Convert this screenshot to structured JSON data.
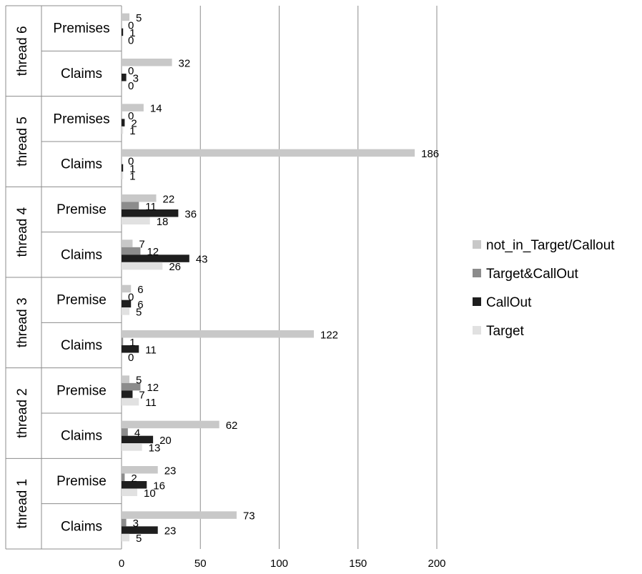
{
  "chart_data": {
    "type": "bar",
    "orientation": "horizontal",
    "grid": true,
    "legend_position": "right",
    "xlim": [
      0,
      200
    ],
    "x_ticks": [
      "0",
      "50",
      "100",
      "150",
      "200"
    ],
    "series": [
      {
        "name": "not_in_Target/Callout",
        "color": "#c8c8c8"
      },
      {
        "name": "Target&CallOut",
        "color": "#8c8c8c"
      },
      {
        "name": "CallOut",
        "color": "#1e1e1e"
      },
      {
        "name": "Target",
        "color": "#e1e1e1"
      }
    ],
    "groups": [
      {
        "name": "thread 6",
        "categories": [
          {
            "label": "Premises",
            "values": [
              5,
              0,
              1,
              0
            ]
          },
          {
            "label": "Claims",
            "values": [
              32,
              0,
              3,
              0
            ]
          }
        ]
      },
      {
        "name": "thread 5",
        "categories": [
          {
            "label": "Premises",
            "values": [
              14,
              0,
              2,
              1
            ]
          },
          {
            "label": "Claims",
            "values": [
              186,
              0,
              1,
              1
            ]
          }
        ]
      },
      {
        "name": "thread 4",
        "categories": [
          {
            "label": "Premise",
            "values": [
              22,
              11,
              36,
              18
            ]
          },
          {
            "label": "Claims",
            "values": [
              7,
              12,
              43,
              26
            ]
          }
        ]
      },
      {
        "name": "thread 3",
        "categories": [
          {
            "label": "Premise",
            "values": [
              6,
              0,
              6,
              5
            ]
          },
          {
            "label": "Claims",
            "values": [
              122,
              1,
              11,
              0
            ]
          }
        ]
      },
      {
        "name": "thread 2",
        "categories": [
          {
            "label": "Premise",
            "values": [
              5,
              12,
              7,
              11
            ]
          },
          {
            "label": "Claims",
            "values": [
              62,
              4,
              20,
              13
            ]
          }
        ]
      },
      {
        "name": "thread 1",
        "categories": [
          {
            "label": "Premise",
            "values": [
              23,
              2,
              16,
              10
            ]
          },
          {
            "label": "Claims",
            "values": [
              73,
              3,
              23,
              5
            ]
          }
        ]
      }
    ]
  }
}
